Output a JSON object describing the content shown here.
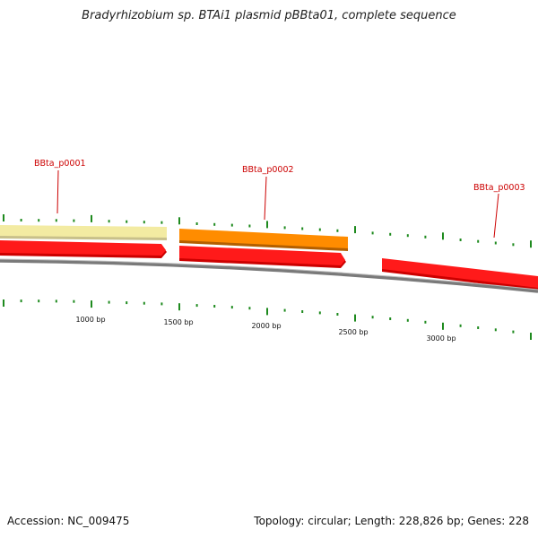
{
  "title": "Bradyrhizobium sp. BTAi1 plasmid pBBta01, complete sequence",
  "accession": "Accession: NC_009475",
  "summary": "Topology: circular; Length: 228,826 bp; Genes: 228",
  "colors": {
    "gene_red": "#ff1a1a",
    "gene_orange": "#ff8c00",
    "gene_pale": "#f3eba2",
    "tick_green": "#1e8a1e",
    "label_red": "#cc0000",
    "backbone": "#808080"
  },
  "genes": [
    {
      "id": "BBta_p0001",
      "strand": "forward",
      "color": "pale",
      "labeled": true
    },
    {
      "id": "BBta_p0002",
      "strand": "forward",
      "color": "orange",
      "labeled": true
    },
    {
      "id": "BBta_p0003",
      "strand": "reverse",
      "color": "red",
      "labeled": true
    }
  ],
  "scale_labels": [
    "1000 bp",
    "1500 bp",
    "2000 bp",
    "2500 bp",
    "3000 bp"
  ]
}
